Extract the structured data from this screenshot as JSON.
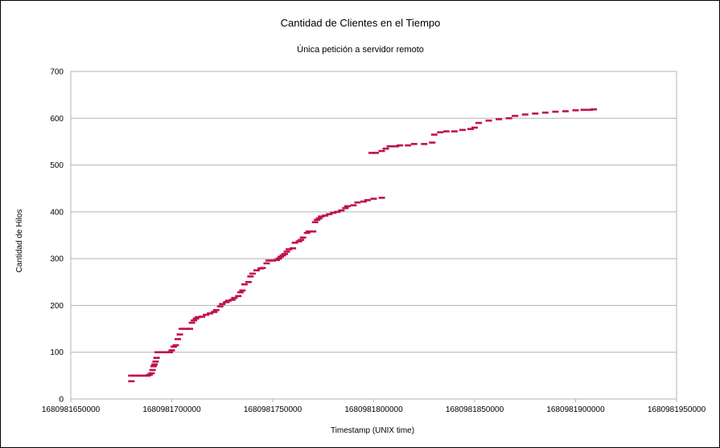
{
  "chart_data": {
    "type": "scatter",
    "title": "Cantidad de Clientes en el Tiempo",
    "subtitle": "Única petición a servidor remoto",
    "xlabel": "Timestamp (UNIX time)",
    "ylabel": "Cantidad de Hilos",
    "xlim": [
      1680981650000,
      1680981950000
    ],
    "ylim": [
      0,
      700
    ],
    "x_ticks": [
      "1680981650000",
      "1680981700000",
      "1680981750000",
      "1680981800000",
      "1680981850000",
      "1680981900000",
      "1680981950000"
    ],
    "y_ticks": [
      "0",
      "100",
      "200",
      "300",
      "400",
      "500",
      "600",
      "700"
    ],
    "grid": "horizontal",
    "legend": "none",
    "marker_color": "#c0104f",
    "series": [
      {
        "points": [
          [
            1680981680000,
            38
          ],
          [
            1680981680000,
            50
          ],
          [
            1680981682000,
            50
          ],
          [
            1680981684000,
            50
          ],
          [
            1680981686000,
            50
          ],
          [
            1680981688000,
            50
          ],
          [
            1680981689000,
            52
          ],
          [
            1680981690000,
            55
          ],
          [
            1680981690500,
            62
          ],
          [
            1680981691000,
            70
          ],
          [
            1680981691500,
            74
          ],
          [
            1680981692000,
            80
          ],
          [
            1680981692500,
            88
          ],
          [
            1680981693000,
            100
          ],
          [
            1680981695000,
            100
          ],
          [
            1680981697000,
            100
          ],
          [
            1680981699000,
            100
          ],
          [
            1680981700000,
            104
          ],
          [
            1680981701000,
            112
          ],
          [
            1680981702000,
            115
          ],
          [
            1680981703000,
            128
          ],
          [
            1680981704000,
            138
          ],
          [
            1680981705000,
            150
          ],
          [
            1680981707000,
            150
          ],
          [
            1680981709000,
            150
          ],
          [
            1680981710000,
            163
          ],
          [
            1680981711000,
            168
          ],
          [
            1680981712000,
            172
          ],
          [
            1680981713000,
            175
          ],
          [
            1680981715000,
            176
          ],
          [
            1680981717000,
            180
          ],
          [
            1680981719000,
            183
          ],
          [
            1680981721000,
            186
          ],
          [
            1680981722000,
            190
          ],
          [
            1680981724000,
            198
          ],
          [
            1680981725000,
            203
          ],
          [
            1680981727000,
            207
          ],
          [
            1680981728000,
            210
          ],
          [
            1680981730000,
            212
          ],
          [
            1680981731000,
            216
          ],
          [
            1680981733000,
            220
          ],
          [
            1680981734000,
            228
          ],
          [
            1680981735000,
            232
          ],
          [
            1680981736000,
            245
          ],
          [
            1680981738000,
            250
          ],
          [
            1680981739000,
            262
          ],
          [
            1680981740000,
            268
          ],
          [
            1680981742000,
            275
          ],
          [
            1680981744000,
            279
          ],
          [
            1680981745000,
            280
          ],
          [
            1680981747000,
            290
          ],
          [
            1680981748000,
            296
          ],
          [
            1680981750000,
            296
          ],
          [
            1680981752000,
            297
          ],
          [
            1680981753000,
            300
          ],
          [
            1680981754000,
            304
          ],
          [
            1680981755000,
            307
          ],
          [
            1680981756000,
            310
          ],
          [
            1680981757000,
            315
          ],
          [
            1680981758000,
            320
          ],
          [
            1680981760000,
            322
          ],
          [
            1680981761000,
            334
          ],
          [
            1680981763000,
            337
          ],
          [
            1680981764000,
            340
          ],
          [
            1680981765000,
            345
          ],
          [
            1680981767000,
            355
          ],
          [
            1680981768000,
            358
          ],
          [
            1680981770000,
            358
          ],
          [
            1680981771000,
            378
          ],
          [
            1680981772000,
            383
          ],
          [
            1680981773000,
            386
          ],
          [
            1680981774000,
            390
          ],
          [
            1680981776000,
            392
          ],
          [
            1680981778000,
            395
          ],
          [
            1680981780000,
            398
          ],
          [
            1680981782000,
            400
          ],
          [
            1680981784000,
            403
          ],
          [
            1680981786000,
            408
          ],
          [
            1680981787000,
            412
          ],
          [
            1680981790000,
            414
          ],
          [
            1680981792000,
            420
          ],
          [
            1680981795000,
            422
          ],
          [
            1680981797000,
            425
          ],
          [
            1680981800000,
            428
          ],
          [
            1680981804000,
            430
          ],
          [
            1680981799000,
            526
          ],
          [
            1680981801000,
            526
          ],
          [
            1680981804000,
            530
          ],
          [
            1680981806000,
            535
          ],
          [
            1680981808000,
            540
          ],
          [
            1680981811000,
            540
          ],
          [
            1680981813000,
            542
          ],
          [
            1680981817000,
            542
          ],
          [
            1680981820000,
            545
          ],
          [
            1680981825000,
            545
          ],
          [
            1680981829000,
            548
          ],
          [
            1680981830000,
            565
          ],
          [
            1680981833000,
            570
          ],
          [
            1680981836000,
            572
          ],
          [
            1680981840000,
            572
          ],
          [
            1680981844000,
            575
          ],
          [
            1680981848000,
            577
          ],
          [
            1680981850000,
            580
          ],
          [
            1680981852000,
            590
          ],
          [
            1680981857000,
            595
          ],
          [
            1680981862000,
            598
          ],
          [
            1680981867000,
            600
          ],
          [
            1680981870000,
            605
          ],
          [
            1680981875000,
            608
          ],
          [
            1680981880000,
            610
          ],
          [
            1680981885000,
            612
          ],
          [
            1680981890000,
            614
          ],
          [
            1680981895000,
            615
          ],
          [
            1680981900000,
            617
          ],
          [
            1680981904000,
            618
          ],
          [
            1680981907000,
            618
          ],
          [
            1680981909000,
            619
          ]
        ]
      }
    ]
  }
}
